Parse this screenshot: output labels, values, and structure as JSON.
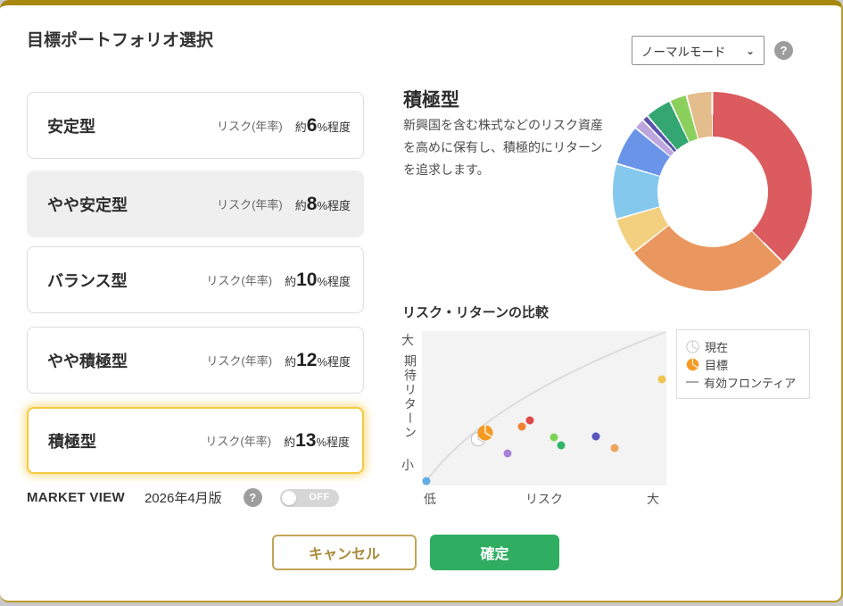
{
  "title": "目標ポートフォリオ選択",
  "mode_select": {
    "value": "ノーマルモード"
  },
  "portfolios": {
    "risk_label": "リスク(年率)",
    "risk_prefix": "約",
    "risk_suffix": "%程度",
    "items": [
      {
        "name": "安定型",
        "risk": "6",
        "state": "default"
      },
      {
        "name": "やや安定型",
        "risk": "8",
        "state": "current"
      },
      {
        "name": "バランス型",
        "risk": "10",
        "state": "default"
      },
      {
        "name": "やや積極型",
        "risk": "12",
        "state": "default"
      },
      {
        "name": "積極型",
        "risk": "13",
        "state": "selected"
      }
    ]
  },
  "market_view": {
    "label": "MARKET VIEW",
    "edition": "2026年4月版",
    "toggle_state": "OFF"
  },
  "detail": {
    "name": "積極型",
    "description": "新興国を含む株式などのリスク資産を高めに保有し、積極的にリターンを追求します。"
  },
  "comparison": {
    "title": "リスク・リターンの比較",
    "y_top": "大",
    "y_label": "期待リターン",
    "y_bottom": "小",
    "x_left": "低",
    "x_center": "リスク",
    "x_right": "大",
    "legend": [
      {
        "label": "現在",
        "icon": "pie-current"
      },
      {
        "label": "目標",
        "icon": "pie-target"
      },
      {
        "label": "有効フロンティア",
        "icon": "line"
      }
    ]
  },
  "buttons": {
    "cancel": "キャンセル",
    "confirm": "確定"
  },
  "colors": {
    "modal_border_gold": "#a8890f",
    "selected_yellow": "#f5c93e",
    "cancel_gold": "#b08f3c",
    "confirm_green": "#2fae62",
    "target_orange": "#f59a23",
    "frontier_gray": "#dcdcdc"
  },
  "chart_data": [
    {
      "type": "pie",
      "title": "積極型 asset allocation donut (no labels shown)",
      "order": "clockwise from 12 o'clock",
      "donut_hole_ratio": 0.56,
      "segments": [
        {
          "color": "#db5b5e",
          "value": 37.5
        },
        {
          "color": "#e9975f",
          "value": 27.0
        },
        {
          "color": "#f3d07f",
          "value": 6.0
        },
        {
          "color": "#85c8ee",
          "value": 9.0
        },
        {
          "color": "#6a94e8",
          "value": 6.5
        },
        {
          "color": "#bca6dd",
          "value": 1.7
        },
        {
          "color": "#5a54af",
          "value": 1.0
        },
        {
          "color": "#34a672",
          "value": 4.3
        },
        {
          "color": "#8bd05d",
          "value": 2.8
        },
        {
          "color": "#e3bd8b",
          "value": 4.2
        }
      ]
    },
    {
      "type": "scatter",
      "title": "リスク・リターンの比較",
      "xlabel": "リスク (低→大)",
      "ylabel": "期待リターン (小→大)",
      "axis_scale": "qualitative 0-100 (percent of plot area)",
      "frontier": "concave gray curve from bottom-left to top-right (有効フロンティア)",
      "points": [
        {
          "name": "asset-lightblue",
          "marker": "dot",
          "color": "#62aee8",
          "x": 2,
          "y": 3
        },
        {
          "name": "current",
          "marker": "pie",
          "color": "#ffffff",
          "x": 23,
          "y": 30
        },
        {
          "name": "target",
          "marker": "pie",
          "color": "#f59a23",
          "x": 26,
          "y": 34
        },
        {
          "name": "asset-purple",
          "marker": "dot",
          "color": "#a583d6",
          "x": 35,
          "y": 21
        },
        {
          "name": "asset-orange",
          "marker": "dot",
          "color": "#ed8235",
          "x": 41,
          "y": 38
        },
        {
          "name": "asset-red",
          "marker": "dot",
          "color": "#e04848",
          "x": 44,
          "y": 42
        },
        {
          "name": "asset-lightgreen",
          "marker": "dot",
          "color": "#7ed357",
          "x": 54,
          "y": 31
        },
        {
          "name": "asset-green",
          "marker": "dot",
          "color": "#2eb56a",
          "x": 57,
          "y": 26
        },
        {
          "name": "asset-indigo",
          "marker": "dot",
          "color": "#5b55c0",
          "x": 71,
          "y": 32
        },
        {
          "name": "asset-tan",
          "marker": "dot",
          "color": "#eda55f",
          "x": 79,
          "y": 24
        },
        {
          "name": "asset-yellow",
          "marker": "dot",
          "color": "#eec352",
          "x": 98,
          "y": 69
        }
      ]
    }
  ]
}
